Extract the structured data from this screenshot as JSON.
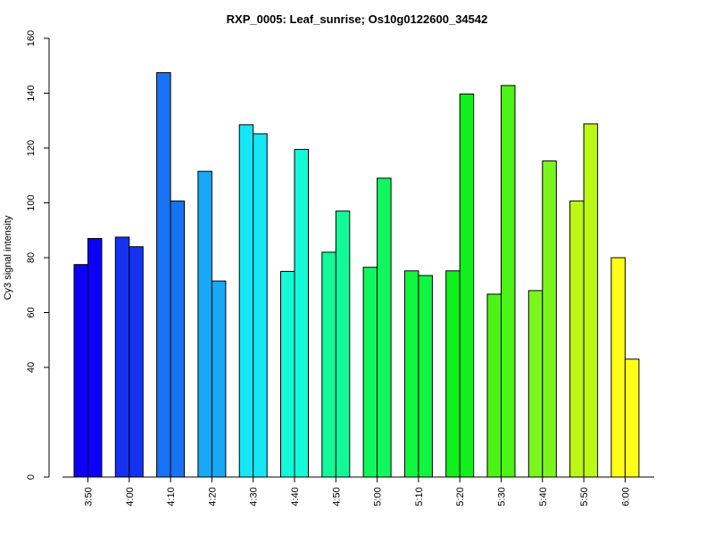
{
  "chart_data": {
    "type": "bar",
    "title": "RXP_0005: Leaf_sunrise; Os10g0122600_34542",
    "xlabel": "",
    "ylabel": "Cy3 signal intensity",
    "ylim": [
      0,
      160
    ],
    "y_axis_break": true,
    "yticks": [
      "0",
      "40",
      "60",
      "80",
      "100",
      "120",
      "140",
      "160"
    ],
    "categories": [
      "3:50",
      "4:00",
      "4:10",
      "4:20",
      "4:30",
      "4:40",
      "4:50",
      "5:00",
      "5:10",
      "5:20",
      "5:30",
      "5:40",
      "5:50",
      "6:00"
    ],
    "colors": [
      "#0c00f7",
      "#1432f0",
      "#1673f5",
      "#17a9f5",
      "#15e7f6",
      "#13fad8",
      "#12f99a",
      "#11f75f",
      "#10f640",
      "#10f11c",
      "#4df316",
      "#7af61c",
      "#bdf716",
      "#ffff17"
    ],
    "series": [
      {
        "values": [
          77.5,
          87.5,
          147.5,
          111.5,
          128.5,
          75,
          82,
          76.5,
          75.2,
          75.2,
          66.7,
          68,
          100.7,
          80
        ]
      },
      {
        "values": [
          87,
          84,
          100.7,
          71.5,
          125.2,
          119.5,
          97,
          109,
          73.5,
          139.7,
          142.8,
          115.3,
          128.8,
          43
        ]
      }
    ]
  }
}
